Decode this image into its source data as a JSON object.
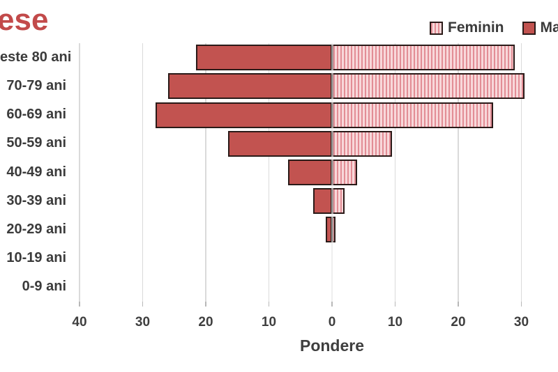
{
  "title": "ese",
  "legend": {
    "feminin_label": "Feminin",
    "masculin_label_partial": "Ma"
  },
  "colors": {
    "masculin_fill": "#c25350",
    "feminin_base": "#f8d8da",
    "feminin_stripe": "#e28d95",
    "bar_border": "#2a1a18",
    "title_text": "#c24a4a",
    "axis_text": "#3f3f3f",
    "gridline": "#dadada"
  },
  "chart_data": {
    "type": "bar",
    "variant": "population-pyramid",
    "title_visible_fragment": "ese",
    "xlabel": "Pondere",
    "categories_top_to_bottom": [
      "este 80 ani",
      "70-79 ani",
      "60-69 ani",
      "50-59 ani",
      "40-49 ani",
      "30-39 ani",
      "20-29 ani",
      "10-19 ani",
      "0-9 ani"
    ],
    "series": [
      {
        "name": "Ma",
        "side": "left",
        "style": "solid",
        "values": [
          21.5,
          26,
          28,
          16.5,
          7,
          3,
          1,
          0,
          0
        ]
      },
      {
        "name": "Feminin",
        "side": "right",
        "style": "striped",
        "values": [
          29,
          30.5,
          25.5,
          9.5,
          4,
          2,
          0.5,
          0,
          0
        ]
      }
    ],
    "x_tick_labels": [
      "40",
      "30",
      "20",
      "10",
      "0",
      "10",
      "20",
      "30"
    ],
    "x_axis_units_per_gridline": 10,
    "x_range": [
      -40,
      40
    ],
    "grid": true,
    "legend_position": "top-right"
  }
}
